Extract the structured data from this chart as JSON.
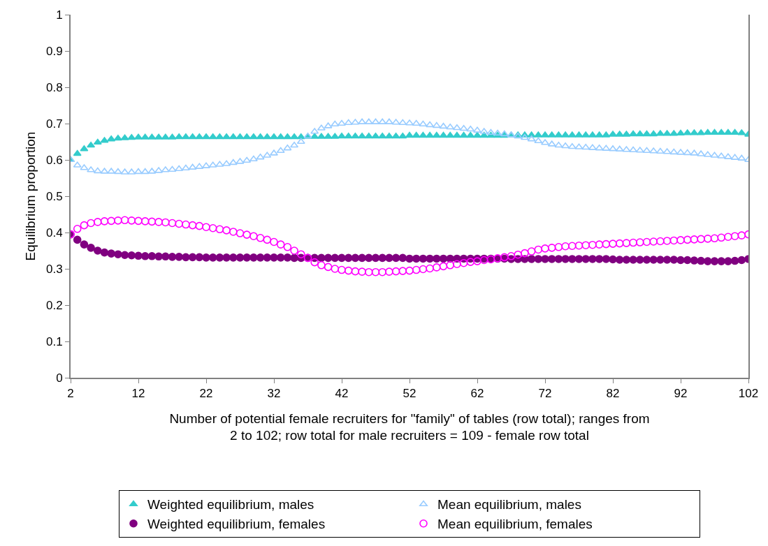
{
  "chart_data": {
    "type": "scatter",
    "xlabel": "Number of potential female recruiters for \"family\" of tables (row total); ranges from 2 to 102; row total for male recruiters = 109 - female row total",
    "ylabel": "Equilibrium proportion",
    "x": [
      2,
      3,
      4,
      5,
      6,
      7,
      8,
      9,
      10,
      11,
      12,
      13,
      14,
      15,
      16,
      17,
      18,
      19,
      20,
      21,
      22,
      23,
      24,
      25,
      26,
      27,
      28,
      29,
      30,
      31,
      32,
      33,
      34,
      35,
      36,
      37,
      38,
      39,
      40,
      41,
      42,
      43,
      44,
      45,
      46,
      47,
      48,
      49,
      50,
      51,
      52,
      53,
      54,
      55,
      56,
      57,
      58,
      59,
      60,
      61,
      62,
      63,
      64,
      65,
      66,
      67,
      68,
      69,
      70,
      71,
      72,
      73,
      74,
      75,
      76,
      77,
      78,
      79,
      80,
      81,
      82,
      83,
      84,
      85,
      86,
      87,
      88,
      89,
      90,
      91,
      92,
      93,
      94,
      95,
      96,
      97,
      98,
      99,
      100,
      101,
      102
    ],
    "xlim": [
      2,
      102
    ],
    "xticks": [
      2,
      12,
      22,
      32,
      42,
      52,
      62,
      72,
      82,
      92,
      102
    ],
    "ylim": [
      0,
      1
    ],
    "yticks": [
      0,
      0.1,
      0.2,
      0.3,
      0.4,
      0.5,
      0.6,
      0.7,
      0.8,
      0.9,
      1
    ],
    "legend": "bottom",
    "series": [
      {
        "name": "Weighted equilibrium, males",
        "color": "#33cccc",
        "marker": "triangle",
        "values": [
          0.6,
          0.617,
          0.63,
          0.64,
          0.648,
          0.653,
          0.657,
          0.659,
          0.66,
          0.661,
          0.662,
          0.662,
          0.662,
          0.662,
          0.662,
          0.662,
          0.663,
          0.663,
          0.663,
          0.663,
          0.663,
          0.663,
          0.663,
          0.663,
          0.663,
          0.663,
          0.663,
          0.663,
          0.663,
          0.663,
          0.663,
          0.663,
          0.663,
          0.663,
          0.663,
          0.664,
          0.664,
          0.664,
          0.664,
          0.664,
          0.665,
          0.665,
          0.665,
          0.665,
          0.665,
          0.665,
          0.665,
          0.665,
          0.665,
          0.665,
          0.667,
          0.667,
          0.667,
          0.667,
          0.667,
          0.667,
          0.667,
          0.667,
          0.667,
          0.667,
          0.667,
          0.667,
          0.667,
          0.667,
          0.667,
          0.668,
          0.668,
          0.668,
          0.668,
          0.668,
          0.668,
          0.668,
          0.668,
          0.668,
          0.668,
          0.668,
          0.668,
          0.668,
          0.668,
          0.668,
          0.67,
          0.67,
          0.67,
          0.671,
          0.671,
          0.671,
          0.671,
          0.672,
          0.672,
          0.672,
          0.673,
          0.674,
          0.674,
          0.674,
          0.675,
          0.675,
          0.675,
          0.675,
          0.675,
          0.674,
          0.67
        ]
      },
      {
        "name": "Mean equilibrium, males",
        "color": "#99ccff",
        "marker": "triangle-open",
        "values": [
          0.6,
          0.585,
          0.578,
          0.572,
          0.569,
          0.568,
          0.568,
          0.567,
          0.566,
          0.566,
          0.567,
          0.567,
          0.568,
          0.57,
          0.572,
          0.573,
          0.575,
          0.577,
          0.579,
          0.581,
          0.583,
          0.585,
          0.587,
          0.589,
          0.592,
          0.595,
          0.598,
          0.602,
          0.607,
          0.612,
          0.618,
          0.625,
          0.632,
          0.64,
          0.65,
          0.665,
          0.678,
          0.687,
          0.693,
          0.698,
          0.7,
          0.702,
          0.703,
          0.704,
          0.704,
          0.704,
          0.704,
          0.704,
          0.703,
          0.702,
          0.701,
          0.7,
          0.698,
          0.696,
          0.694,
          0.692,
          0.69,
          0.688,
          0.686,
          0.684,
          0.681,
          0.678,
          0.675,
          0.673,
          0.671,
          0.668,
          0.665,
          0.661,
          0.657,
          0.652,
          0.647,
          0.643,
          0.64,
          0.638,
          0.636,
          0.635,
          0.634,
          0.633,
          0.632,
          0.631,
          0.63,
          0.629,
          0.628,
          0.627,
          0.626,
          0.625,
          0.624,
          0.623,
          0.622,
          0.621,
          0.62,
          0.619,
          0.618,
          0.616,
          0.614,
          0.612,
          0.61,
          0.608,
          0.606,
          0.604,
          0.6
        ]
      },
      {
        "name": "Weighted equilibrium, females",
        "color": "#800080",
        "marker": "circle",
        "values": [
          0.395,
          0.38,
          0.367,
          0.358,
          0.35,
          0.345,
          0.342,
          0.34,
          0.338,
          0.337,
          0.336,
          0.335,
          0.335,
          0.334,
          0.334,
          0.333,
          0.333,
          0.332,
          0.332,
          0.332,
          0.331,
          0.331,
          0.331,
          0.331,
          0.331,
          0.331,
          0.331,
          0.331,
          0.331,
          0.331,
          0.331,
          0.331,
          0.331,
          0.33,
          0.33,
          0.33,
          0.33,
          0.33,
          0.33,
          0.33,
          0.33,
          0.33,
          0.33,
          0.33,
          0.33,
          0.33,
          0.33,
          0.33,
          0.33,
          0.33,
          0.328,
          0.328,
          0.328,
          0.328,
          0.328,
          0.328,
          0.328,
          0.328,
          0.328,
          0.328,
          0.328,
          0.328,
          0.328,
          0.328,
          0.328,
          0.327,
          0.327,
          0.327,
          0.327,
          0.327,
          0.327,
          0.327,
          0.327,
          0.327,
          0.327,
          0.327,
          0.327,
          0.327,
          0.327,
          0.327,
          0.326,
          0.325,
          0.325,
          0.325,
          0.325,
          0.325,
          0.325,
          0.325,
          0.325,
          0.325,
          0.324,
          0.324,
          0.323,
          0.322,
          0.321,
          0.321,
          0.321,
          0.321,
          0.322,
          0.324,
          0.327
        ]
      },
      {
        "name": "Mean equilibrium, females",
        "color": "#ff00ff",
        "marker": "circle-open",
        "values": [
          0.395,
          0.41,
          0.42,
          0.426,
          0.429,
          0.431,
          0.432,
          0.433,
          0.434,
          0.433,
          0.432,
          0.431,
          0.43,
          0.429,
          0.428,
          0.426,
          0.424,
          0.422,
          0.42,
          0.418,
          0.415,
          0.412,
          0.409,
          0.406,
          0.402,
          0.398,
          0.394,
          0.39,
          0.385,
          0.38,
          0.374,
          0.367,
          0.36,
          0.35,
          0.34,
          0.33,
          0.318,
          0.31,
          0.305,
          0.3,
          0.297,
          0.295,
          0.293,
          0.292,
          0.291,
          0.291,
          0.291,
          0.292,
          0.293,
          0.294,
          0.295,
          0.297,
          0.299,
          0.301,
          0.304,
          0.307,
          0.31,
          0.313,
          0.316,
          0.319,
          0.321,
          0.324,
          0.326,
          0.329,
          0.332,
          0.335,
          0.339,
          0.343,
          0.348,
          0.353,
          0.356,
          0.358,
          0.36,
          0.362,
          0.363,
          0.364,
          0.365,
          0.366,
          0.367,
          0.368,
          0.369,
          0.37,
          0.371,
          0.372,
          0.373,
          0.374,
          0.375,
          0.376,
          0.377,
          0.378,
          0.379,
          0.38,
          0.381,
          0.382,
          0.383,
          0.384,
          0.386,
          0.388,
          0.39,
          0.392,
          0.395
        ]
      }
    ]
  }
}
